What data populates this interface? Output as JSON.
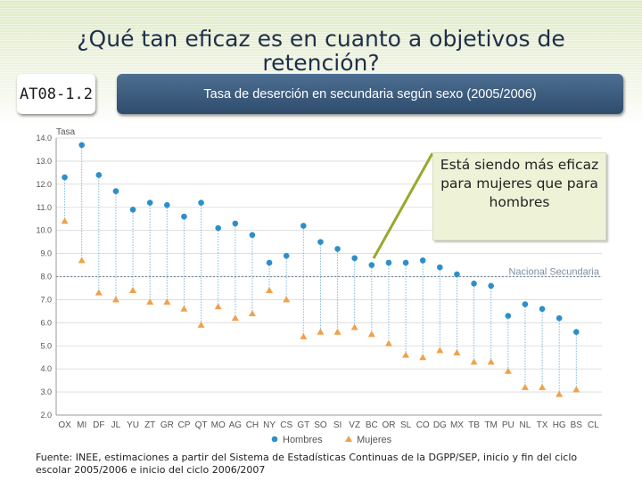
{
  "header": {
    "title": "¿Qué tan eficaz es en cuanto a objetivos de retención?",
    "code": "AT08-1.2",
    "subtitle": "Tasa de deserción en secundaria según sexo (2005/2006)"
  },
  "callout": {
    "text": "Está siendo más eficaz para mujeres que para hombres"
  },
  "source": {
    "text": "Fuente: INEE, estimaciones a partir del Sistema de Estadísticas Continuas de la DGPP/SEP, inicio y fin del ciclo escolar 2005/2006 e inicio del ciclo 2006/2007"
  },
  "colors": {
    "hombres": "#2c8fc9",
    "mujeres": "#f0a14a",
    "stem": "#7fb7dd",
    "grid": "#d9d9d9",
    "axis_text": "#555555",
    "national": "#7d8fa0"
  },
  "chart_data": {
    "type": "scatter",
    "ylabel": "Tasa",
    "ylim": [
      2.0,
      14.0
    ],
    "yticks": [
      "2.0",
      "3.0",
      "4.0",
      "5.0",
      "6.0",
      "7.0",
      "8.0",
      "9.0",
      "10.0",
      "11.0",
      "12.0",
      "13.0",
      "14.0"
    ],
    "categories": [
      "OX",
      "MI",
      "DF",
      "JL",
      "YU",
      "ZT",
      "GR",
      "CP",
      "QT",
      "MO",
      "AG",
      "CH",
      "NY",
      "CS",
      "GT",
      "SO",
      "SI",
      "VZ",
      "BC",
      "OR",
      "SL",
      "CO",
      "DG",
      "MX",
      "TB",
      "TM",
      "PU",
      "NL",
      "TX",
      "HG",
      "BS",
      "CL"
    ],
    "series": [
      {
        "name": "Hombres",
        "values": [
          12.3,
          13.7,
          12.4,
          11.7,
          10.9,
          11.2,
          11.1,
          10.6,
          11.2,
          10.1,
          10.3,
          9.8,
          8.6,
          8.9,
          10.2,
          9.5,
          9.2,
          8.8,
          8.5,
          8.6,
          8.6,
          8.7,
          8.4,
          8.1,
          7.7,
          7.6,
          6.3,
          6.8,
          6.6,
          6.2,
          5.6,
          null
        ]
      },
      {
        "name": "Mujeres",
        "values": [
          10.4,
          8.7,
          7.3,
          7.0,
          7.4,
          6.9,
          6.9,
          6.6,
          5.9,
          6.7,
          6.2,
          6.4,
          7.4,
          7.0,
          5.4,
          5.6,
          5.6,
          5.8,
          5.5,
          5.1,
          4.6,
          4.5,
          4.8,
          4.7,
          4.3,
          4.3,
          3.9,
          3.2,
          3.2,
          2.9,
          3.1,
          null
        ]
      }
    ],
    "reference_line": {
      "label": "Nacional Secundaria",
      "value": 8.0
    },
    "grid": true,
    "legend_position": "bottom"
  }
}
